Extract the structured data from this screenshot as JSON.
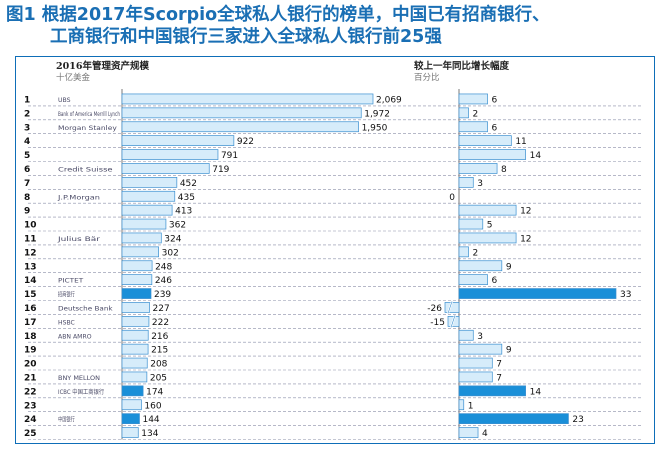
{
  "title": {
    "label": "图1",
    "line1": "根据2017年Scorpio全球私人银行的榜单，中国已有招商银行、",
    "line2": "工商银行和中国银行三家进入全球私人银行前25强"
  },
  "colors": {
    "title": "#1a6fb4",
    "frame": "#0e6eb8",
    "bar_light": "#d6ecfa",
    "bar_dark": "#1a8fd8",
    "bar_edge": "#3a8fd0",
    "grid": "#8a8fa8"
  },
  "chart_data": [
    {
      "type": "bar",
      "orientation": "horizontal",
      "title": "2016年管理资产规模",
      "unit": "十亿美金",
      "categories": [
        "1",
        "2",
        "3",
        "4",
        "5",
        "6",
        "7",
        "8",
        "9",
        "10",
        "11",
        "12",
        "13",
        "14",
        "15",
        "16",
        "17",
        "18",
        "19",
        "20",
        "21",
        "22",
        "23",
        "24",
        "25"
      ],
      "bank_logos": [
        "UBS",
        "Bank of America Merrill Lynch",
        "Morgan Stanley",
        "",
        "",
        "Credit Suisse",
        "",
        "J.P.Morgan",
        "",
        "",
        "Julius Bär",
        "",
        "",
        "PICTET",
        "招商银行",
        "Deutsche Bank",
        "HSBC",
        "ABN AMRO",
        "",
        "",
        "BNY MELLON",
        "ICBC 中国工商银行",
        "",
        "中国银行",
        ""
      ],
      "values": [
        2069,
        1972,
        1950,
        922,
        791,
        719,
        452,
        435,
        413,
        362,
        324,
        302,
        248,
        246,
        239,
        227,
        222,
        216,
        215,
        208,
        205,
        174,
        160,
        144,
        134
      ],
      "value_labels": [
        "2,069",
        "1,972",
        "1,950",
        "922",
        "791",
        "719",
        "452",
        "435",
        "413",
        "362",
        "324",
        "302",
        "248",
        "246",
        "239",
        "227",
        "222",
        "216",
        "215",
        "208",
        "205",
        "174",
        "160",
        "144",
        "134"
      ],
      "highlight_ranks": [
        15,
        22,
        24
      ],
      "xlim": [
        0,
        2200
      ],
      "grid": "dashed horizontal lines between rows"
    },
    {
      "type": "bar",
      "orientation": "horizontal",
      "title": "较上一年同比增长幅度",
      "unit": "百分比",
      "categories": [
        "1",
        "2",
        "3",
        "4",
        "5",
        "6",
        "7",
        "8",
        "9",
        "10",
        "11",
        "12",
        "13",
        "14",
        "15",
        "16",
        "17",
        "18",
        "19",
        "20",
        "21",
        "22",
        "23",
        "24",
        "25"
      ],
      "values": [
        6,
        2,
        6,
        11,
        14,
        8,
        3,
        0,
        12,
        5,
        12,
        2,
        9,
        6,
        33,
        -26,
        -15,
        3,
        9,
        7,
        7,
        14,
        1,
        23,
        4
      ],
      "value_labels": [
        "6",
        "2",
        "6",
        "11",
        "14",
        "8",
        "3",
        "0",
        "12",
        "5",
        "12",
        "2",
        "9",
        "6",
        "33",
        "-26",
        "-15",
        "3",
        "9",
        "7",
        "7",
        "14",
        "1",
        "23",
        "4"
      ],
      "highlight_ranks": [
        15,
        22,
        24
      ],
      "xlim": [
        -26,
        34
      ],
      "axis_break": true
    }
  ]
}
